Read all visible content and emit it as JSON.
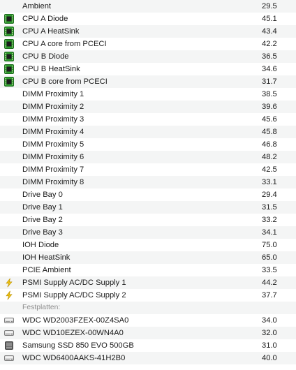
{
  "sensors": [
    {
      "label": "Ambient",
      "value": "29.5",
      "icon": "none"
    },
    {
      "label": "CPU A Diode",
      "value": "45.1",
      "icon": "cpu-chip-icon"
    },
    {
      "label": "CPU A HeatSink",
      "value": "43.4",
      "icon": "cpu-chip-icon"
    },
    {
      "label": "CPU A core from PCECI",
      "value": "42.2",
      "icon": "cpu-chip-icon"
    },
    {
      "label": "CPU B Diode",
      "value": "36.5",
      "icon": "cpu-chip-icon"
    },
    {
      "label": "CPU B HeatSink",
      "value": "34.6",
      "icon": "cpu-chip-icon"
    },
    {
      "label": "CPU B core from PCECI",
      "value": "31.7",
      "icon": "cpu-chip-icon"
    },
    {
      "label": "DIMM Proximity 1",
      "value": "38.5",
      "icon": "none"
    },
    {
      "label": "DIMM Proximity 2",
      "value": "39.6",
      "icon": "none"
    },
    {
      "label": "DIMM Proximity 3",
      "value": "45.6",
      "icon": "none"
    },
    {
      "label": "DIMM Proximity 4",
      "value": "45.8",
      "icon": "none"
    },
    {
      "label": "DIMM Proximity 5",
      "value": "46.8",
      "icon": "none"
    },
    {
      "label": "DIMM Proximity 6",
      "value": "48.2",
      "icon": "none"
    },
    {
      "label": "DIMM Proximity 7",
      "value": "42.5",
      "icon": "none"
    },
    {
      "label": "DIMM Proximity 8",
      "value": "33.1",
      "icon": "none"
    },
    {
      "label": "Drive Bay 0",
      "value": "29.4",
      "icon": "none"
    },
    {
      "label": "Drive Bay 1",
      "value": "31.5",
      "icon": "none"
    },
    {
      "label": "Drive Bay 2",
      "value": "33.2",
      "icon": "none"
    },
    {
      "label": "Drive Bay 3",
      "value": "34.1",
      "icon": "none"
    },
    {
      "label": "IOH Diode",
      "value": "75.0",
      "icon": "none"
    },
    {
      "label": "IOH HeatSink",
      "value": "65.0",
      "icon": "none"
    },
    {
      "label": "PCIE Ambient",
      "value": "33.5",
      "icon": "none"
    },
    {
      "label": "PSMI Supply AC/DC Supply 1",
      "value": "44.2",
      "icon": "lightning-bolt-icon"
    },
    {
      "label": "PSMI Supply AC/DC Supply 2",
      "value": "37.7",
      "icon": "lightning-bolt-icon"
    },
    {
      "label": "Festplatten:",
      "value": "",
      "icon": "none",
      "section": true
    },
    {
      "label": "WDC WD2003FZEX-00Z4SA0",
      "value": "34.0",
      "icon": "hard-drive-icon"
    },
    {
      "label": "WDC WD10EZEX-00WN4A0",
      "value": "32.0",
      "icon": "hard-drive-icon"
    },
    {
      "label": "Samsung SSD 850 EVO 500GB",
      "value": "31.0",
      "icon": "ssd-drive-icon"
    },
    {
      "label": "WDC WD6400AAKS-41H2B0",
      "value": "40.0",
      "icon": "hard-drive-icon"
    }
  ],
  "colors": {
    "row_stripe": "#f4f5f5",
    "chip_green": "#2e9a2e",
    "bolt_yellow": "#f2c40f"
  }
}
